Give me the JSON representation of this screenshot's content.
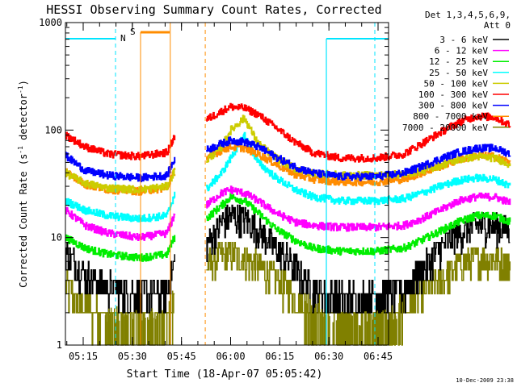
{
  "chart_data": {
    "type": "line",
    "title": "HESSI Observing Summary Count Rates, Corrected",
    "xlabel": "Start Time (18-Apr-07 05:05:42)",
    "ylabel_main": "Corrected Count Rate (s",
    "ylabel_sup1": "-1",
    "ylabel_mid": " detector",
    "ylabel_sup2": "-1",
    "ylabel_end": ")",
    "y_scale": "log",
    "ylim": [
      1,
      1000
    ],
    "xlim_minutes": [
      5.7,
      76.7
    ],
    "x_ticks": [
      {
        "m": 15,
        "label": "05:15"
      },
      {
        "m": 30,
        "label": "05:30"
      },
      {
        "m": 45,
        "label": "05:45"
      },
      {
        "m": 60,
        "label": "06:00"
      },
      {
        "m": 75,
        "label": "06:15"
      },
      {
        "m": 90,
        "label": "06:30"
      },
      {
        "m": 105,
        "label": "06:45"
      }
    ],
    "y_ticks": [
      {
        "v": 1,
        "label": "1"
      },
      {
        "v": 10,
        "label": "10"
      },
      {
        "v": 100,
        "label": "100"
      },
      {
        "v": 1000,
        "label": "1000"
      }
    ],
    "legend_header": [
      "Det 1,3,4,5,6,9,",
      "Att 0"
    ],
    "legend_placement": "right",
    "timestamp": "10-Dec-2009 23:38",
    "flag_labels": [
      {
        "text": "N",
        "color": "#00e5ff"
      },
      {
        "text": "S",
        "color": "#ff8c00"
      }
    ],
    "gaps_minutes": [
      [
        29.8,
        36.6
      ]
    ],
    "night_lines_minutes": [
      22.5,
      96.5
    ],
    "series": [
      {
        "name": "3 - 6 keV",
        "color": "#000000",
        "x": [
          5.7,
          10,
          15,
          22,
          28,
          30,
          36.6,
          40,
          42,
          45,
          48,
          52,
          56,
          60,
          66,
          74,
          80,
          84,
          88,
          92,
          96,
          100,
          103.5
        ],
        "y": [
          7.5,
          4.5,
          3.5,
          3.0,
          3.2,
          7.0,
          8.5,
          14,
          16,
          15,
          12,
          8,
          5.5,
          3.2,
          2.8,
          2.8,
          3.2,
          5,
          8,
          11,
          13,
          13,
          12
        ]
      },
      {
        "name": "6 - 12 keV",
        "color": "#ff00ff",
        "x": [
          5.7,
          10,
          15,
          22,
          28,
          30,
          36.6,
          40,
          42,
          45,
          48,
          52,
          56,
          60,
          66,
          74,
          80,
          84,
          88,
          92,
          96,
          100,
          103.5
        ],
        "y": [
          18,
          13,
          11,
          10,
          11,
          18,
          20,
          26,
          28,
          26,
          22,
          17,
          14,
          13,
          12.5,
          12.5,
          13,
          15,
          18,
          22,
          24,
          24,
          21
        ]
      },
      {
        "name": "12 - 25 keV",
        "color": "#00ee00",
        "x": [
          5.7,
          10,
          15,
          22,
          28,
          30,
          36.6,
          40,
          42,
          45,
          48,
          52,
          56,
          60,
          66,
          74,
          80,
          84,
          88,
          92,
          96,
          100,
          103.5
        ],
        "y": [
          10,
          8,
          7,
          6.5,
          7,
          11,
          15,
          20,
          24,
          22,
          17,
          12,
          9.5,
          8,
          7.5,
          7.5,
          8,
          9.5,
          11.5,
          14,
          16,
          16,
          14
        ]
      },
      {
        "name": "25 - 50 keV",
        "color": "#00ffff",
        "x": [
          5.7,
          10,
          15,
          22,
          28,
          30,
          36.6,
          40,
          42,
          45,
          48,
          52,
          56,
          60,
          66,
          74,
          80,
          84,
          88,
          92,
          96,
          100,
          103.5
        ],
        "y": [
          22,
          18,
          16,
          15,
          16,
          28,
          28,
          40,
          55,
          90,
          50,
          36,
          28,
          24,
          22,
          22,
          23,
          26,
          30,
          34,
          36,
          35,
          30
        ]
      },
      {
        "name": "50 - 100 keV",
        "color": "#cccc00",
        "x": [
          5.7,
          10,
          15,
          22,
          28,
          30,
          36.6,
          40,
          42,
          45,
          48,
          52,
          56,
          60,
          66,
          74,
          80,
          84,
          88,
          92,
          96,
          100,
          103.5
        ],
        "y": [
          40,
          32,
          29,
          28,
          30,
          45,
          52,
          70,
          100,
          130,
          75,
          55,
          44,
          40,
          38,
          38,
          39,
          42,
          47,
          53,
          57,
          55,
          48
        ]
      },
      {
        "name": "100 - 300 keV",
        "color": "#ff0000",
        "x": [
          5.7,
          10,
          15,
          22,
          28,
          30,
          36.6,
          40,
          42,
          45,
          48,
          52,
          56,
          60,
          66,
          74,
          80,
          84,
          88,
          92,
          96,
          100,
          103.5
        ],
        "y": [
          90,
          70,
          60,
          57,
          62,
          95,
          125,
          150,
          165,
          160,
          140,
          105,
          78,
          62,
          55,
          55,
          60,
          75,
          95,
          118,
          135,
          132,
          110
        ]
      },
      {
        "name": "300 - 800 keV",
        "color": "#0000ff",
        "x": [
          5.7,
          10,
          15,
          22,
          28,
          30,
          36.6,
          40,
          42,
          45,
          48,
          52,
          56,
          60,
          66,
          74,
          80,
          84,
          88,
          92,
          96,
          100,
          103.5
        ],
        "y": [
          58,
          42,
          38,
          36,
          38,
          58,
          65,
          75,
          80,
          78,
          70,
          56,
          46,
          40,
          37,
          37,
          40,
          46,
          54,
          62,
          68,
          68,
          60
        ]
      },
      {
        "name": "800 - 7000 keV",
        "color": "#ff8c00",
        "x": [
          5.7,
          10,
          15,
          22,
          28,
          30,
          36.6,
          40,
          42,
          45,
          48,
          52,
          56,
          60,
          66,
          74,
          80,
          84,
          88,
          92,
          96,
          100,
          103.5
        ],
        "y": [
          42,
          31,
          28,
          27,
          29,
          45,
          55,
          65,
          70,
          68,
          60,
          48,
          39,
          35,
          33,
          33,
          35,
          40,
          46,
          53,
          58,
          57,
          50
        ]
      },
      {
        "name": "7000 - 20000 keV",
        "color": "#808000",
        "x": [
          5.7,
          10,
          15,
          22,
          28,
          30,
          36.6,
          40,
          42,
          45,
          48,
          52,
          56,
          60,
          66,
          74,
          80,
          84,
          88,
          92,
          96,
          100,
          103.5
        ],
        "y": [
          3.5,
          2.2,
          1.8,
          1.7,
          1.8,
          3.0,
          5.5,
          6.8,
          7.0,
          6.5,
          5.5,
          4,
          3,
          2,
          1.6,
          1.6,
          2,
          3,
          4,
          5.5,
          6.5,
          6.5,
          5.5
        ]
      }
    ]
  }
}
